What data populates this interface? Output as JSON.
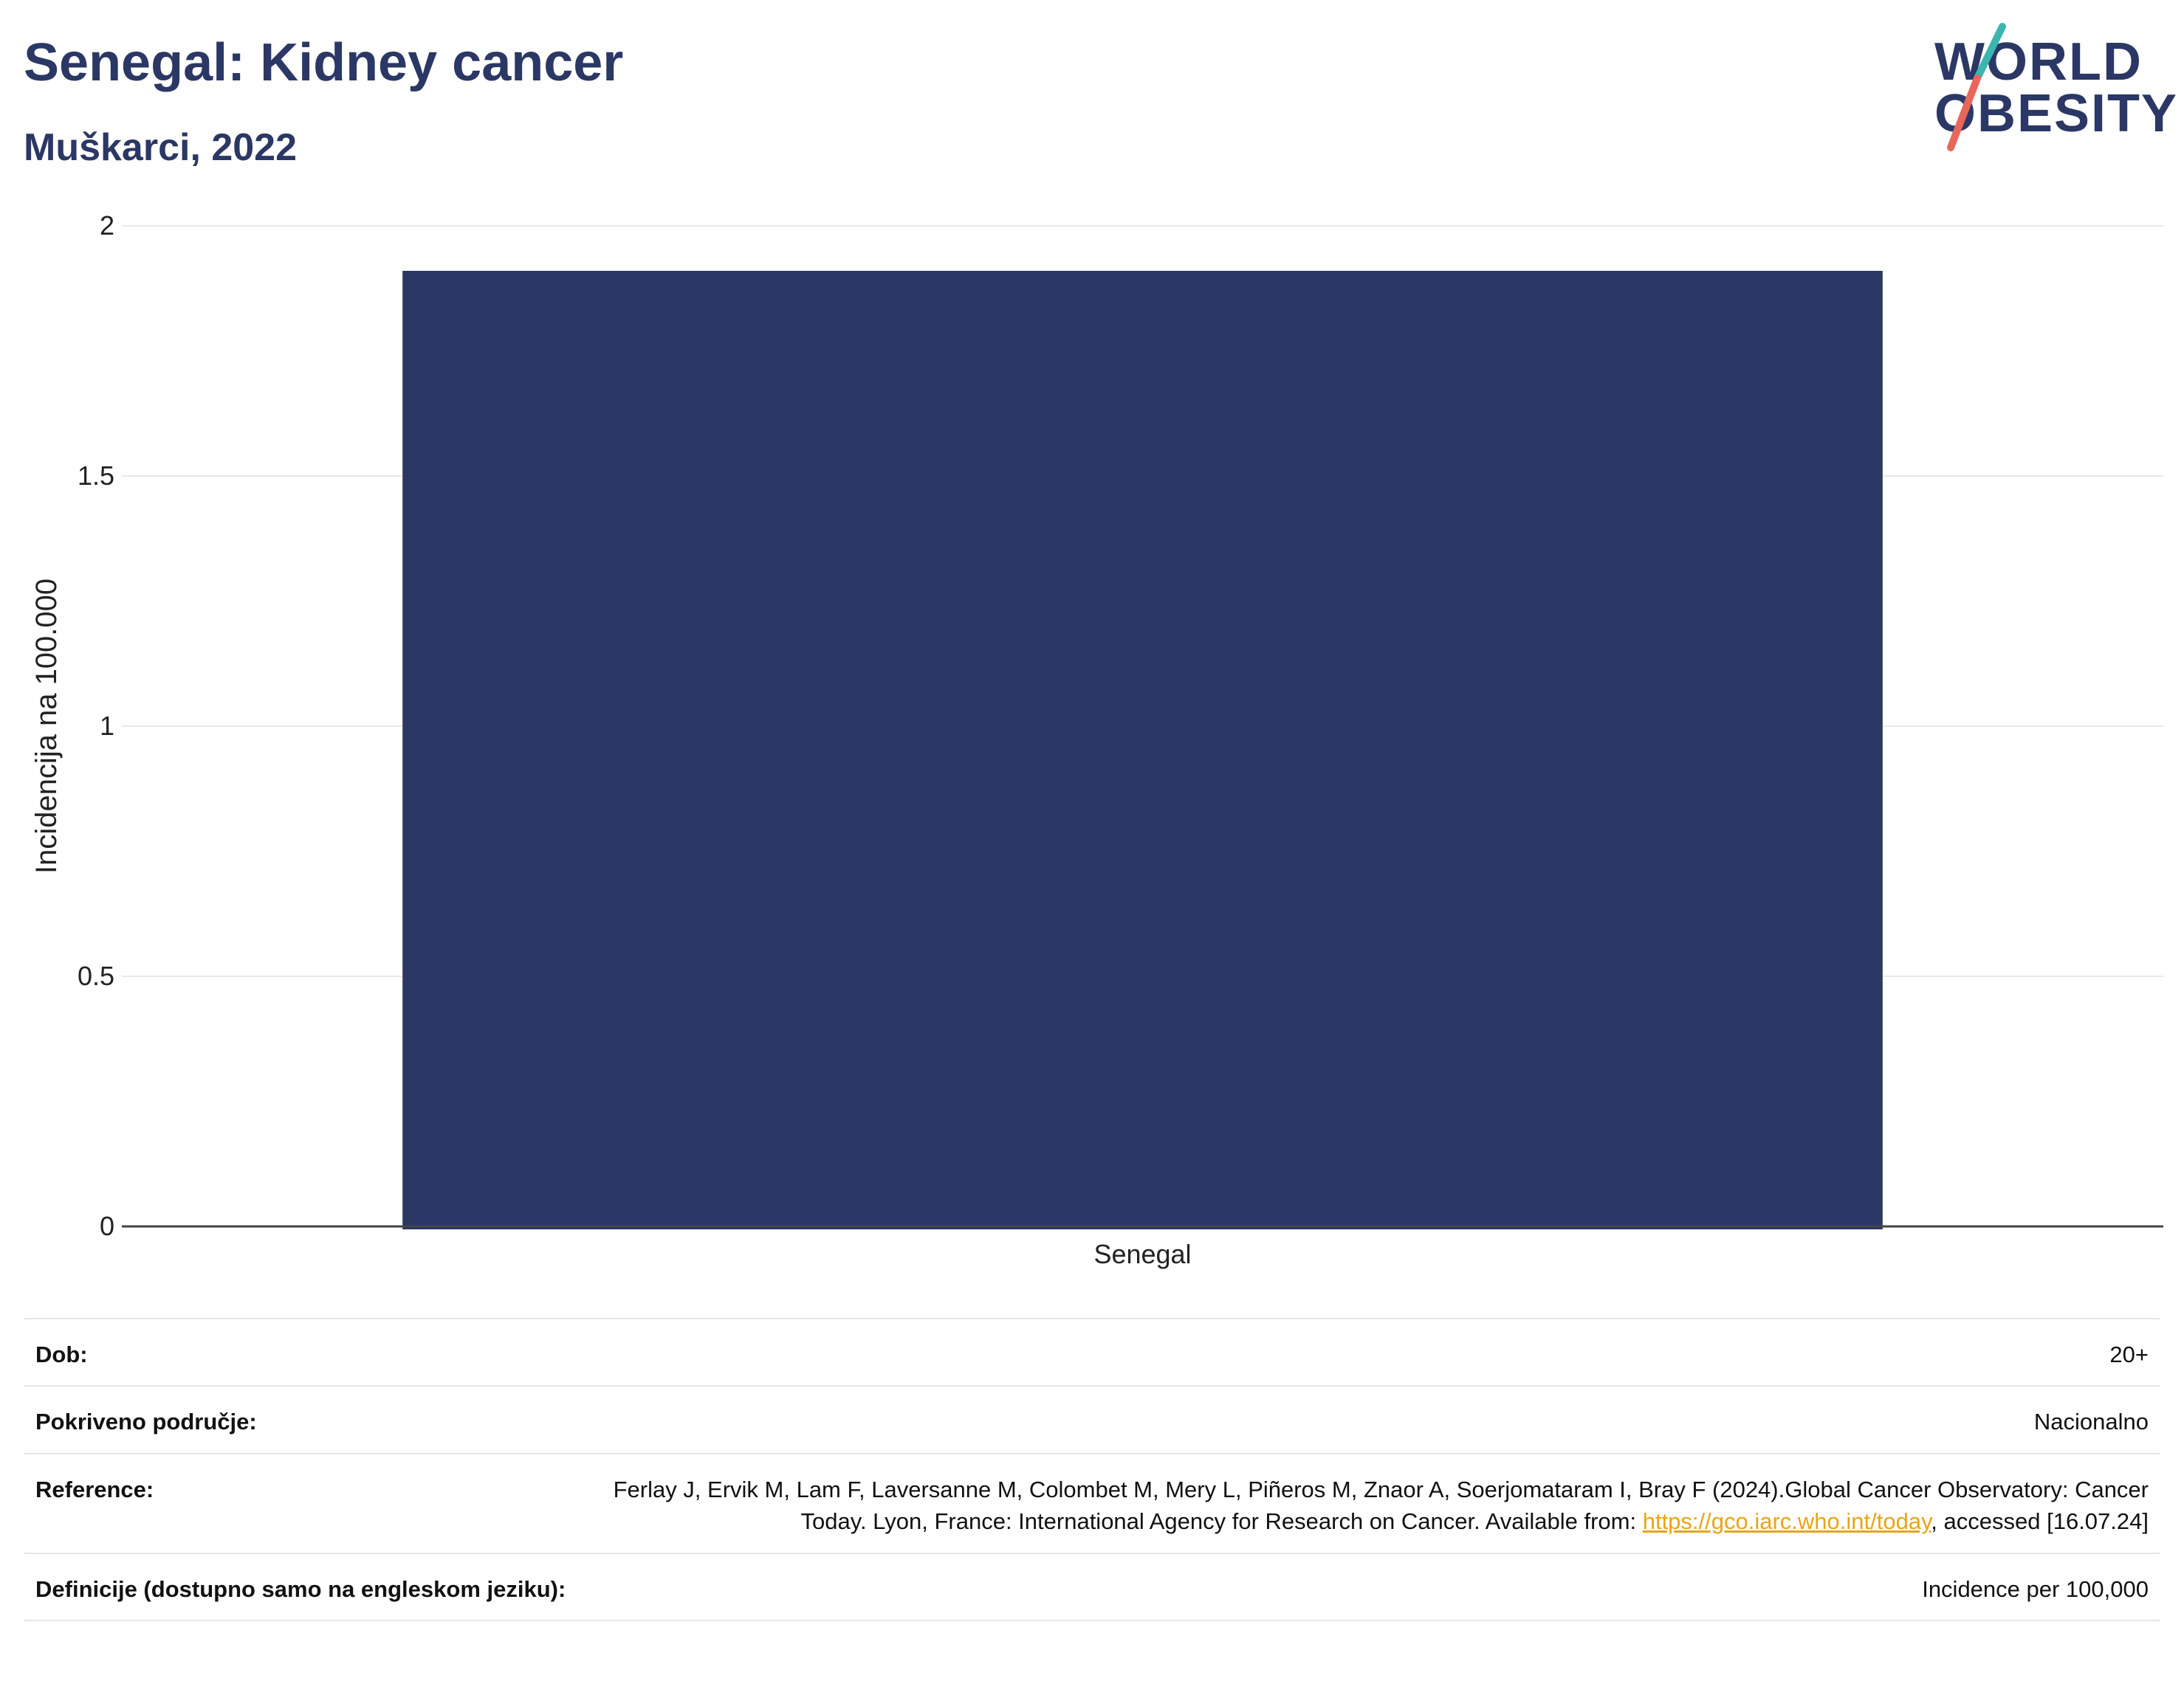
{
  "header": {
    "title": "Senegal: Kidney cancer",
    "subtitle": "Muškarci, 2022"
  },
  "logo": {
    "line1": "WORLD",
    "line2": "OBESITY",
    "colors": {
      "text": "#2b3764",
      "slash_top": "#3ab5b0",
      "slash_bottom": "#e8675a"
    }
  },
  "chart_data": {
    "type": "bar",
    "categories": [
      "Senegal"
    ],
    "values": [
      1.91
    ],
    "title": "Senegal: Kidney cancer",
    "subtitle": "Muškarci, 2022",
    "xlabel": "",
    "ylabel": "Incidencija na 100.000",
    "ylim": [
      0,
      2
    ],
    "yticks": [
      "0",
      "0.5",
      "1",
      "1.5",
      "2"
    ],
    "grid": true,
    "bar_color": "#2b3764"
  },
  "info": {
    "age": {
      "label": "Dob:",
      "value": "20+"
    },
    "coverage": {
      "label": "Pokriveno područje:",
      "value": "Nacionalno"
    },
    "reference": {
      "label": "Reference:",
      "text_before": "Ferlay J, Ervik M, Lam F, Laversanne M, Colombet M, Mery L, Piñeros M, Znaor A, Soerjomataram I, Bray F (2024).Global Cancer Observatory: Cancer Today. Lyon, France: International Agency for Research on Cancer. Available from: ",
      "link": "https://gco.iarc.who.int/today",
      "text_after": ", accessed [16.07.24]"
    },
    "definitions": {
      "label": "Definicije (dostupno samo na engleskom jeziku):",
      "value": "Incidence per 100,000"
    }
  }
}
